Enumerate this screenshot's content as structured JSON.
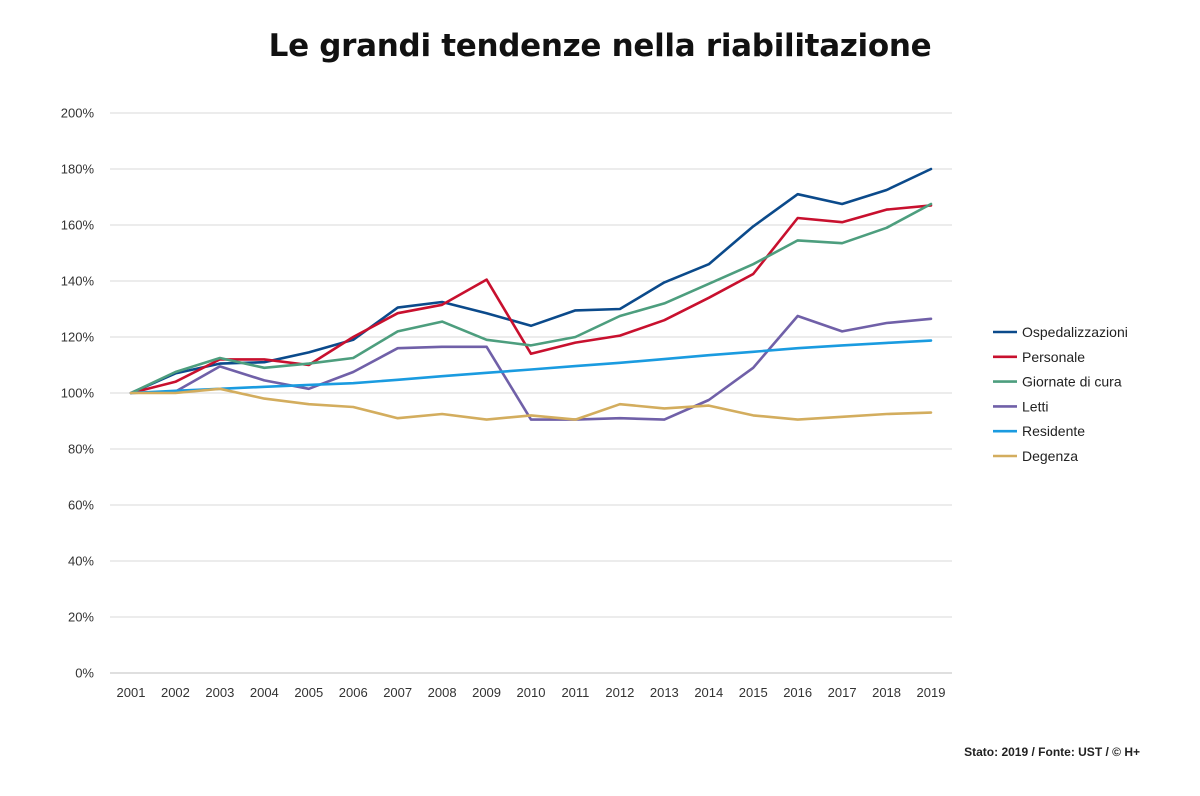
{
  "chart_data": {
    "type": "line",
    "title": "Le grandi tendenze nella riabilitazione",
    "x": [
      "2001",
      "2002",
      "2003",
      "2004",
      "2005",
      "2006",
      "2007",
      "2008",
      "2009",
      "2010",
      "2011",
      "2012",
      "2013",
      "2014",
      "2015",
      "2016",
      "2017",
      "2018",
      "2019"
    ],
    "y_ticks": [
      "0%",
      "20%",
      "40%",
      "60%",
      "80%",
      "100%",
      "120%",
      "140%",
      "160%",
      "180%",
      "200%"
    ],
    "ylim": [
      0,
      200
    ],
    "grid": true,
    "legend_position": "right",
    "series": [
      {
        "name": "Ospedalizzazioni",
        "color": "#0b4a8b",
        "values": [
          100,
          107,
          110.5,
          111,
          114.5,
          119,
          130.5,
          132.5,
          128.5,
          124,
          129.5,
          130,
          139.5,
          146,
          159.5,
          171,
          167.5,
          172.5,
          180
        ]
      },
      {
        "name": "Personale",
        "color": "#c8102e",
        "values": [
          100,
          104,
          112,
          112,
          110,
          120,
          128.5,
          131.5,
          140.5,
          114,
          118,
          120.5,
          126,
          134,
          142.5,
          162.5,
          161,
          165.5,
          167
        ]
      },
      {
        "name": "Giornate di cura",
        "color": "#4d9e7e",
        "values": [
          100,
          107.5,
          112.5,
          109,
          110.5,
          112.5,
          122,
          125.5,
          119,
          117,
          120,
          127.5,
          132,
          139,
          146,
          154.5,
          153.5,
          159,
          167.5
        ]
      },
      {
        "name": "Letti",
        "color": "#7060a8",
        "values": [
          100,
          100.5,
          109.5,
          104.5,
          101.5,
          107.5,
          116,
          116.5,
          116.5,
          90.5,
          90.5,
          91,
          90.5,
          97.5,
          109,
          127.5,
          122,
          125,
          126.5
        ]
      },
      {
        "name": "Residente",
        "color": "#1a9be0",
        "values": [
          100,
          100.8,
          101.5,
          102.2,
          102.9,
          103.5,
          104.7,
          106,
          107.2,
          108.4,
          109.6,
          110.8,
          112.1,
          113.5,
          114.7,
          116,
          117,
          117.9,
          118.7
        ]
      },
      {
        "name": "Degenza",
        "color": "#d3ad5e",
        "values": [
          100,
          100,
          101.5,
          98,
          96,
          95,
          91,
          92.5,
          90.5,
          92,
          90.5,
          96,
          94.5,
          95.5,
          92,
          90.5,
          91.5,
          92.5,
          93
        ]
      }
    ],
    "source_note": "Stato: 2019 / Fonte: UST / © H+"
  }
}
